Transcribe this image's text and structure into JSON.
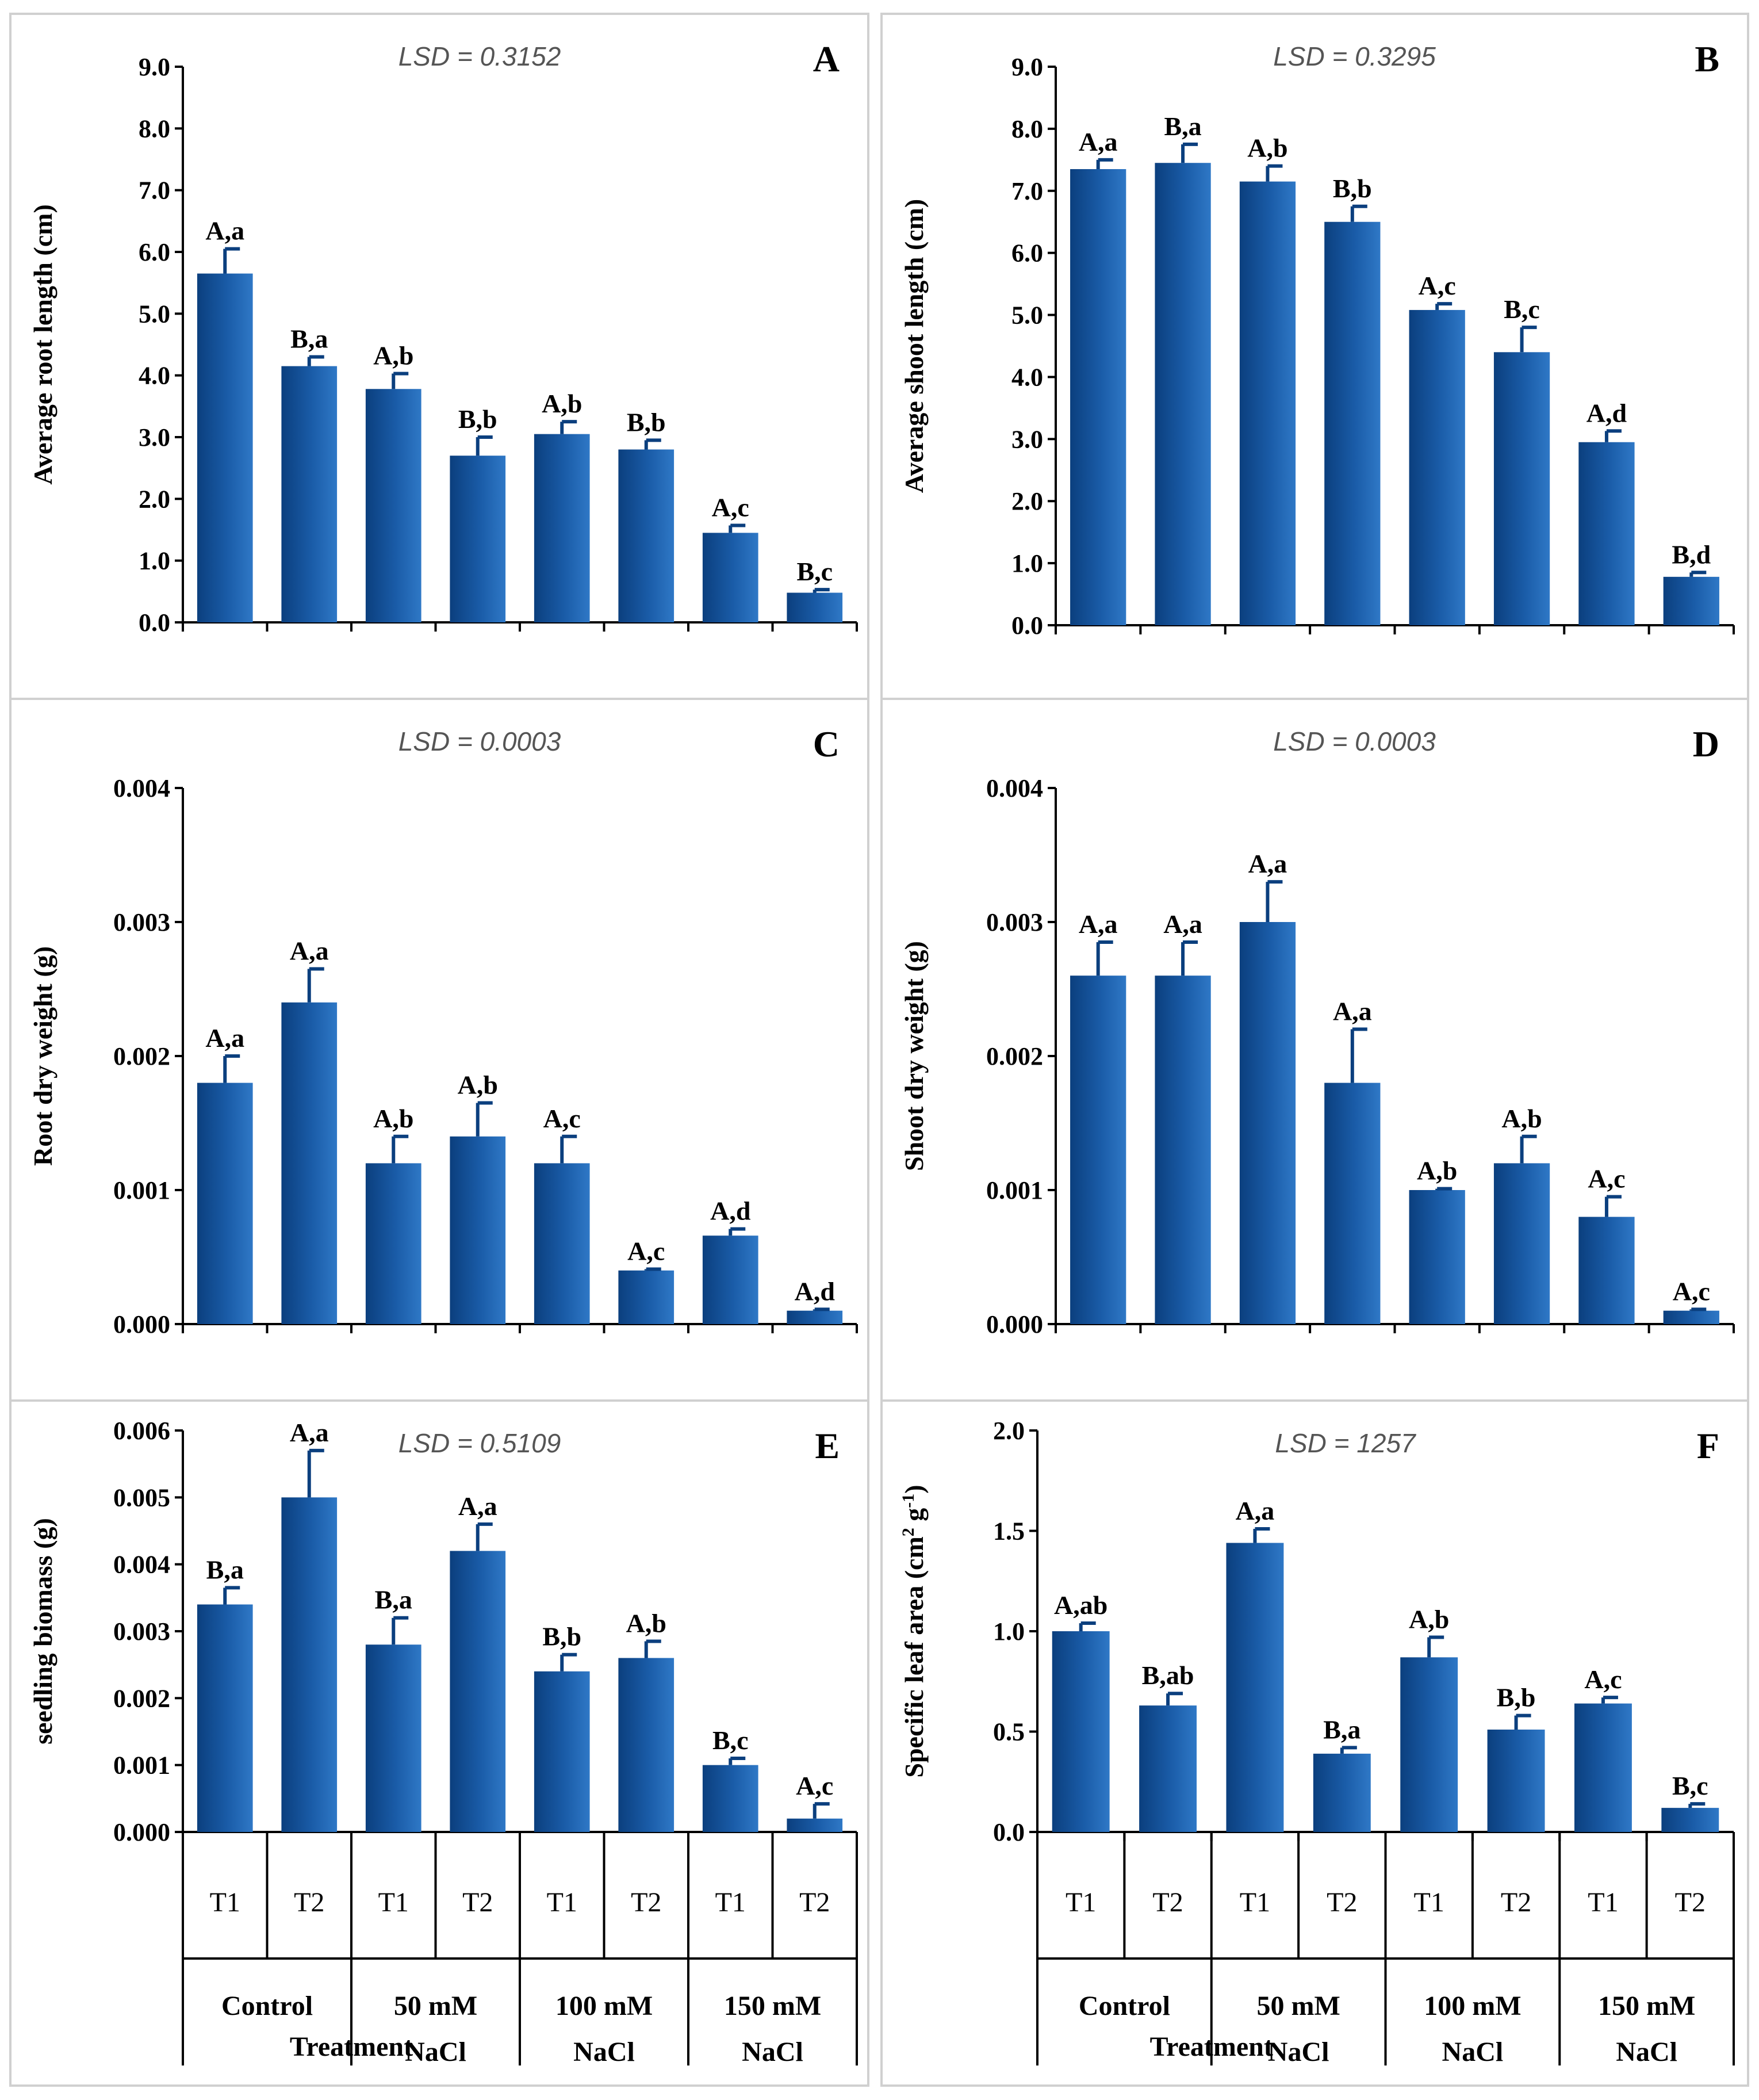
{
  "colors": {
    "bar_dark": "#0b3f7e",
    "bar_light": "#2f78c6",
    "axis": "#000000",
    "panel_border": "#d0d0d0",
    "lsd_text": "#555555"
  },
  "chart_data": [
    {
      "type": "bar",
      "panel": "A",
      "lsd": "LSD = 0.3152",
      "ylabel": "Average root length (cm)",
      "xlabel": "",
      "ylim": [
        0,
        9
      ],
      "yticks": [
        "0.0",
        "1.0",
        "2.0",
        "3.0",
        "4.0",
        "5.0",
        "6.0",
        "7.0",
        "8.0",
        "9.0"
      ],
      "values": [
        5.65,
        4.15,
        3.78,
        2.7,
        3.05,
        2.8,
        1.45,
        0.48
      ],
      "errors": [
        0.4,
        0.15,
        0.25,
        0.3,
        0.2,
        0.15,
        0.12,
        0.05
      ],
      "labels": [
        "A,a",
        "B,a",
        "A,b",
        "B,b",
        "A,b",
        "B,b",
        "A,c",
        "B,c"
      ]
    },
    {
      "type": "bar",
      "panel": "B",
      "lsd": "LSD = 0.3295",
      "ylabel": "Average shoot length (cm)",
      "xlabel": "",
      "ylim": [
        0,
        9
      ],
      "yticks": [
        "0.0",
        "1.0",
        "2.0",
        "3.0",
        "4.0",
        "5.0",
        "6.0",
        "7.0",
        "8.0",
        "9.0"
      ],
      "values": [
        7.35,
        7.45,
        7.15,
        6.5,
        5.08,
        4.4,
        2.95,
        0.78
      ],
      "errors": [
        0.15,
        0.3,
        0.25,
        0.25,
        0.1,
        0.4,
        0.18,
        0.07
      ],
      "labels": [
        "A,a",
        "B,a",
        "A,b",
        "B,b",
        "A,c",
        "B,c",
        "A,d",
        "B,d"
      ]
    },
    {
      "type": "bar",
      "panel": "C",
      "lsd": "LSD = 0.0003",
      "ylabel": "Root dry weight (g)",
      "xlabel": "",
      "ylim": [
        0,
        0.004
      ],
      "yticks": [
        "0.000",
        "0.001",
        "0.002",
        "0.003",
        "0.004"
      ],
      "values": [
        0.0018,
        0.0024,
        0.0012,
        0.0014,
        0.0012,
        0.0004,
        0.00066,
        0.0001
      ],
      "errors": [
        0.0002,
        0.00025,
        0.0002,
        0.00025,
        0.0002,
        1e-05,
        5e-05,
        1e-05
      ],
      "labels": [
        "A,a",
        "A,a",
        "A,b",
        "A,b",
        "A,c",
        "A,c",
        "A,d",
        "A,d"
      ]
    },
    {
      "type": "bar",
      "panel": "D",
      "lsd": "LSD = 0.0003",
      "ylabel": "Shoot dry weight (g)",
      "xlabel": "",
      "ylim": [
        0,
        0.004
      ],
      "yticks": [
        "0.000",
        "0.001",
        "0.002",
        "0.003",
        "0.004"
      ],
      "values": [
        0.0026,
        0.0026,
        0.003,
        0.0018,
        0.001,
        0.0012,
        0.0008,
        0.0001
      ],
      "errors": [
        0.00025,
        0.00025,
        0.0003,
        0.0004,
        1e-05,
        0.0002,
        0.00015,
        1e-05
      ],
      "labels": [
        "A,a",
        "A,a",
        "A,a",
        "A,a",
        "A,b",
        "A,b",
        "A,c",
        "A,c"
      ]
    },
    {
      "type": "bar",
      "panel": "E",
      "lsd": "LSD = 0.5109",
      "ylabel": "seedling biomass (g)",
      "xlabel": "Treatment",
      "ylim": [
        0,
        0.006
      ],
      "yticks": [
        "0.000",
        "0.001",
        "0.002",
        "0.003",
        "0.004",
        "0.005",
        "0.006"
      ],
      "values": [
        0.0034,
        0.005,
        0.0028,
        0.0042,
        0.0024,
        0.0026,
        0.001,
        0.0002
      ],
      "errors": [
        0.00025,
        0.0007,
        0.0004,
        0.0004,
        0.00025,
        0.00025,
        0.0001,
        0.00022
      ],
      "labels": [
        "B,a",
        "A,a",
        "B,a",
        "A,a",
        "B,b",
        "A,b",
        "B,c",
        "A,c"
      ]
    },
    {
      "type": "bar",
      "panel": "F",
      "lsd": "LSD = 1257",
      "ylabel_main": "Specific leaf area (cm",
      "ylabel_sup1": "2",
      "ylabel_mid": " g",
      "ylabel_sup2": "-1",
      "ylabel_end": ")",
      "xlabel": "Treatment",
      "ylim": [
        0,
        2
      ],
      "yticks": [
        "0.0",
        "0.5",
        "1.0",
        "1.5",
        "2.0"
      ],
      "values": [
        1.0,
        0.63,
        1.44,
        0.39,
        0.87,
        0.51,
        0.64,
        0.12
      ],
      "errors": [
        0.04,
        0.06,
        0.07,
        0.03,
        0.1,
        0.07,
        0.03,
        0.02
      ],
      "labels": [
        "A,ab",
        "B,ab",
        "A,a",
        "B,a",
        "A,b",
        "B,b",
        "A,c",
        "B,c"
      ]
    }
  ],
  "x_axis": {
    "categories": [
      "T1",
      "T2",
      "T1",
      "T2",
      "T1",
      "T2",
      "T1",
      "T2"
    ],
    "groups": [
      {
        "line1": "Control",
        "line2": ""
      },
      {
        "line1": "50 mM",
        "line2": "NaCl"
      },
      {
        "line1": "100 mM",
        "line2": "NaCl"
      },
      {
        "line1": "150 mM",
        "line2": "NaCl"
      }
    ],
    "title": "Treatment"
  }
}
